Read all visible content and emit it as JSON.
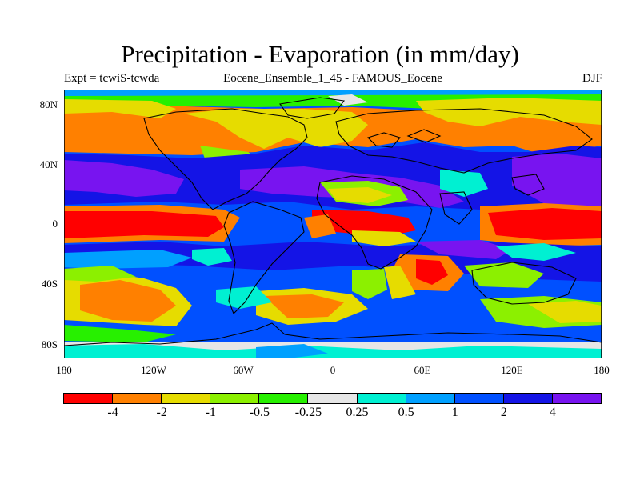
{
  "title": "Precipitation - Evaporation (in mm/day)",
  "subtitle_left": "Expt = tcwiS-tcwda",
  "subtitle_center": "Eocene_Ensemble_1_45 - FAMOUS_Eocene",
  "subtitle_right": "DJF",
  "lat_labels": [
    "80N",
    "40N",
    "0",
    "40S",
    "80S"
  ],
  "lon_labels": [
    "180",
    "120W",
    "60W",
    "0",
    "60E",
    "120E",
    "180"
  ],
  "colorbar": {
    "colors": [
      "#ff0000",
      "#ff8000",
      "#e6dc00",
      "#8cf000",
      "#27f000",
      "#e6e6e6",
      "#00f0d2",
      "#00a0ff",
      "#0050ff",
      "#1414e6",
      "#7814f0"
    ],
    "labels": [
      "-4",
      "-2",
      "-1",
      "-0.5",
      "-0.25",
      "0.25",
      "0.5",
      "1",
      "2",
      "4"
    ]
  },
  "palette": {
    "red": "#ff0000",
    "orange": "#ff8000",
    "yellow": "#e6dc00",
    "lime": "#8cf000",
    "green": "#27f000",
    "grey": "#e6e6e6",
    "cyan": "#00f0d2",
    "skyblue": "#00a0ff",
    "blue": "#0050ff",
    "navy": "#1414e6",
    "purple": "#7814f0"
  }
}
